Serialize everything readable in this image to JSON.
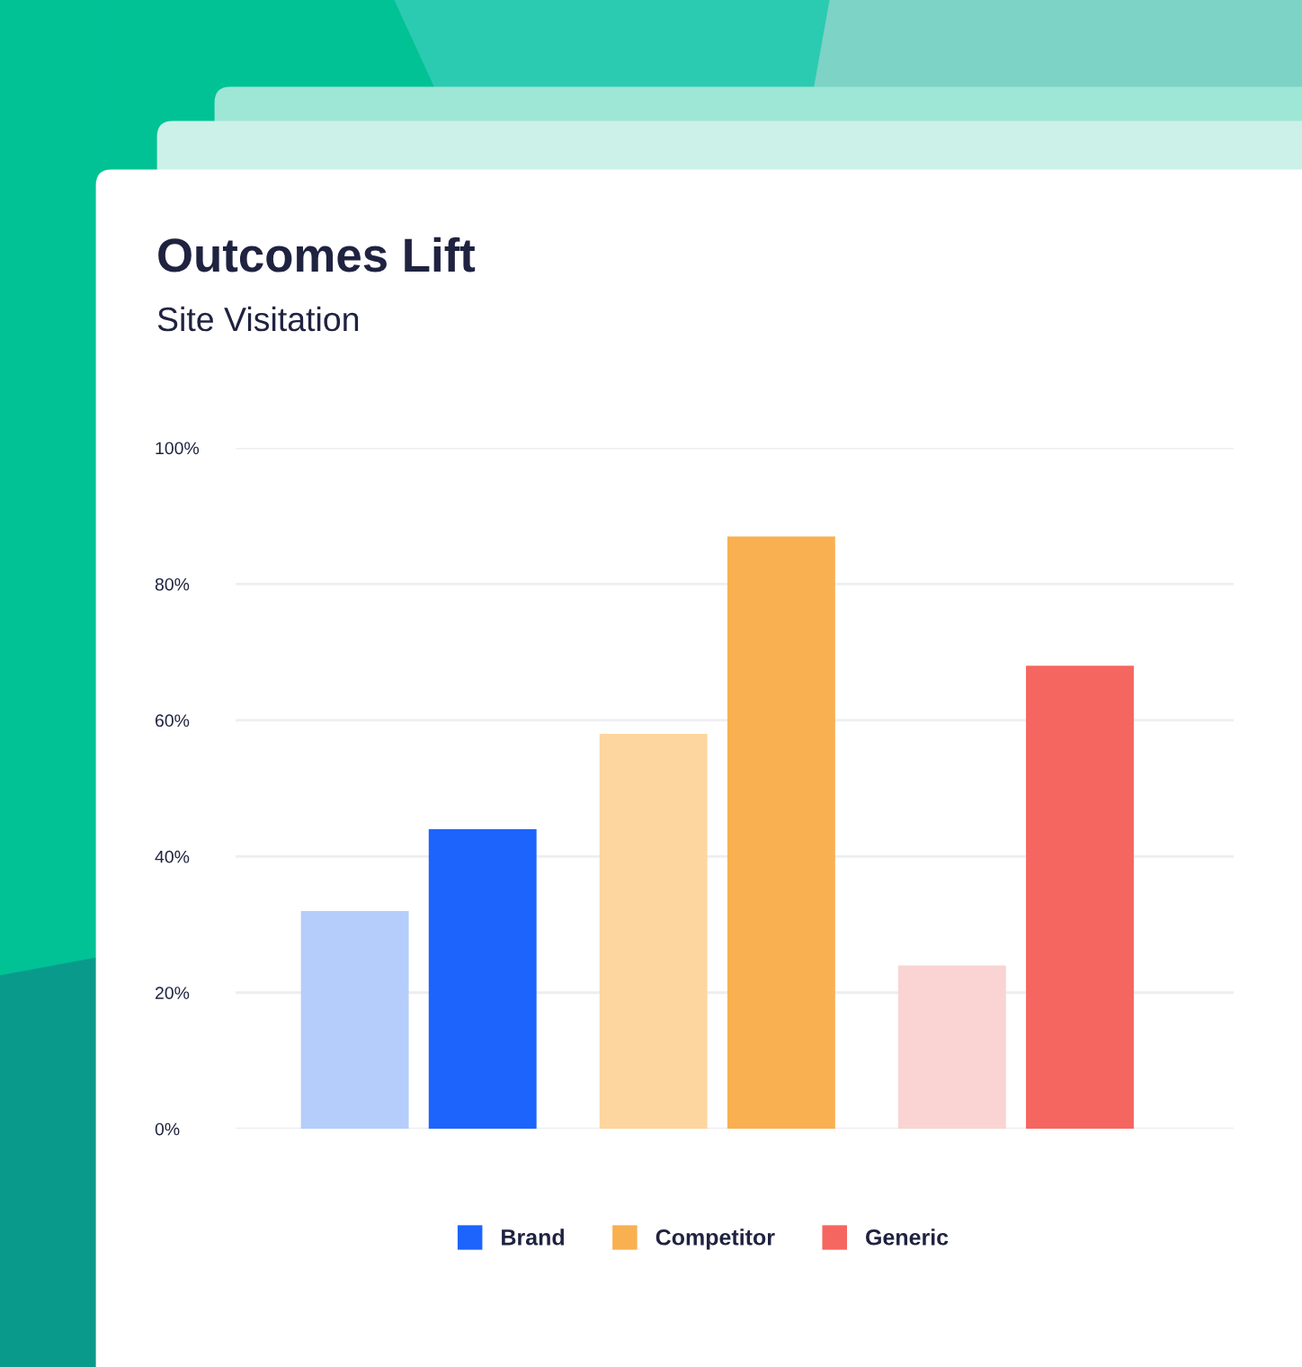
{
  "chart_data": {
    "type": "bar",
    "title": "Outcomes Lift",
    "subtitle": "Site Visitation",
    "categories": [
      null,
      null,
      null
    ],
    "series": [
      {
        "values": [
          32,
          58,
          24
        ],
        "colors": [
          "#b5cdfa",
          "#fdd59f",
          "#f9d4d2"
        ]
      },
      {
        "name": "Brand",
        "color": "#1d64fd",
        "values": [
          44,
          null,
          null
        ]
      },
      {
        "name": "Competitor",
        "color": "#f8b050",
        "values": [
          null,
          87,
          null
        ]
      },
      {
        "name": "Generic",
        "color": "#f56660",
        "values": [
          null,
          null,
          68
        ]
      }
    ],
    "ylim": [
      0,
      100
    ],
    "yticks": [
      {
        "value": 0,
        "label": "0%"
      },
      {
        "value": 20,
        "label": "20%"
      },
      {
        "value": 40,
        "label": "40%"
      },
      {
        "value": 60,
        "label": "60%"
      },
      {
        "value": 80,
        "label": "80%"
      },
      {
        "value": 100,
        "label": "100%"
      }
    ],
    "grid": "y",
    "legend": "bottom",
    "tick_labels": "y"
  }
}
